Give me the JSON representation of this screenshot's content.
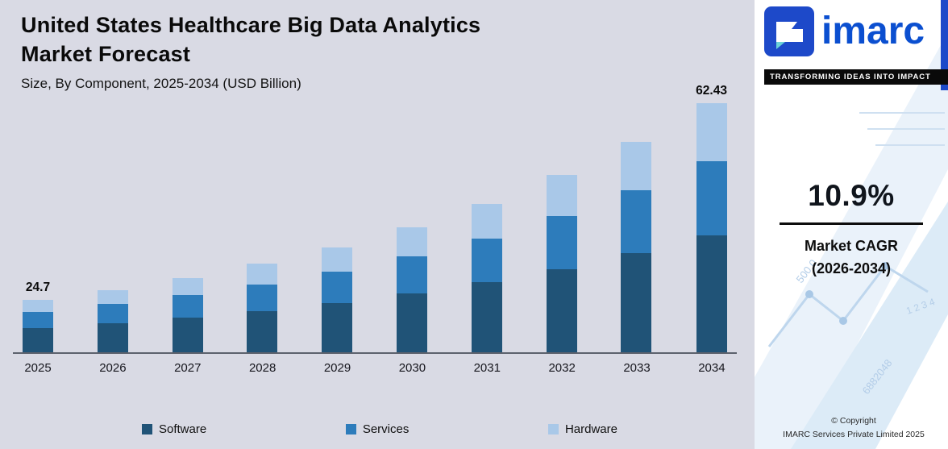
{
  "header": {
    "title_line1": "United States Healthcare Big Data Analytics",
    "title_line2": "Market Forecast",
    "subtitle": "Size, By Component, 2025-2034 (USD Billion)"
  },
  "chart_data": {
    "type": "bar",
    "stacked": true,
    "title": "United States Healthcare Big Data Analytics Market Forecast",
    "subtitle": "Size, By Component, 2025-2034 (USD Billion)",
    "units": "USD Billion",
    "categories": [
      "2025",
      "2026",
      "2027",
      "2028",
      "2029",
      "2030",
      "2031",
      "2032",
      "2033",
      "2034"
    ],
    "series": [
      {
        "name": "Software",
        "color": "#205377",
        "values": [
          11.6,
          12.9,
          14.3,
          15.8,
          17.6,
          19.5,
          21.6,
          24.0,
          26.6,
          29.33
        ]
      },
      {
        "name": "Services",
        "color": "#2d7cbb",
        "values": [
          7.4,
          8.2,
          9.1,
          10.1,
          11.2,
          12.4,
          13.7,
          15.2,
          16.9,
          18.7
        ]
      },
      {
        "name": "Hardware",
        "color": "#a9c8e8",
        "values": [
          5.7,
          6.3,
          7.0,
          7.8,
          8.6,
          9.5,
          10.6,
          11.8,
          13.0,
          14.4
        ]
      }
    ],
    "totals": [
      24.7,
      27.4,
      30.4,
      33.7,
      37.4,
      41.4,
      45.9,
      51.0,
      56.5,
      62.43
    ],
    "annotations": [
      {
        "category": "2025",
        "label": "24.7"
      },
      {
        "category": "2034",
        "label": "62.43"
      }
    ],
    "legend_position": "bottom",
    "xlabel": "",
    "ylabel": ""
  },
  "side_panel": {
    "logo_text": "imarc",
    "tagline": "TRANSFORMING IDEAS INTO IMPACT",
    "cagr_value": "10.9%",
    "cagr_label_line1": "Market CAGR",
    "cagr_label_line2": "(2026-2034)",
    "copyright_line1": "© Copyright",
    "copyright_line2": "IMARC Services Private Limited 2025",
    "watermark_numbers": [
      "500.0",
      "6882048",
      "1 2 3 4"
    ]
  },
  "colors": {
    "chart_background": "#d9dae4",
    "panel_background": "#ffffff",
    "brand_blue": "#1d49c9",
    "brand_teal": "#6ad1d8",
    "axis_line": "#5c616d",
    "text": "#0a0a0a"
  }
}
